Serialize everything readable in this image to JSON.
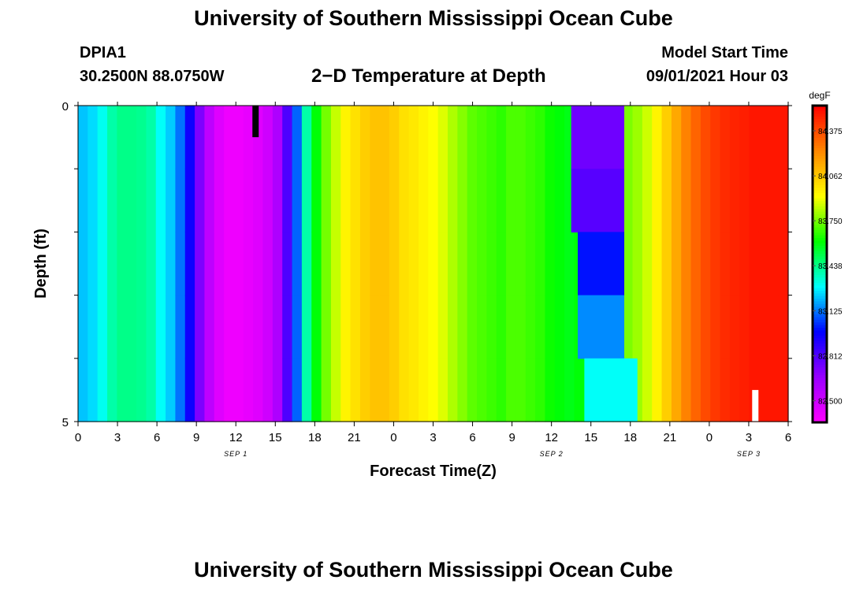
{
  "header": {
    "title": "University of Southern Mississippi Ocean Cube",
    "station": "DPIA1",
    "coords": "30.2500N  88.0750W",
    "plot_title": "2−D Temperature at Depth",
    "start_label": "Model Start Time",
    "start_time": "09/01/2021 Hour 03"
  },
  "footer": {
    "title": "University of Southern Mississippi Ocean Cube"
  },
  "chart_data": {
    "type": "heatmap",
    "title": "2−D Temperature at Depth",
    "xlabel": "Forecast Time(Z)",
    "ylabel": "Depth (ft)",
    "x_range_hours": [
      0,
      54
    ],
    "y_range": [
      0,
      5
    ],
    "x_tick_labels": [
      "0",
      "3",
      "6",
      "9",
      "12",
      "15",
      "18",
      "21",
      "0",
      "3",
      "6",
      "9",
      "12",
      "15",
      "18",
      "21",
      "0",
      "3",
      "6"
    ],
    "y_tick_labels": [
      "0",
      "5"
    ],
    "date_labels": [
      {
        "text": "SEP 1",
        "at_hour": 12
      },
      {
        "text": "SEP 2",
        "at_hour": 36
      },
      {
        "text": "SEP 3",
        "at_hour": 51
      }
    ],
    "colorbar": {
      "unit": "degF",
      "range": [
        82.35,
        84.55
      ],
      "tick_labels": [
        "84.375",
        "84.062",
        "83.750",
        "83.438",
        "83.125",
        "82.812",
        "82.500"
      ],
      "tick_values": [
        84.375,
        84.062,
        83.75,
        83.438,
        83.125,
        82.812,
        82.5
      ],
      "colors": [
        "#ff00ff",
        "#9900ff",
        "#0000ff",
        "#00ffff",
        "#00ff00",
        "#ffff00",
        "#ff8800",
        "#ff0000"
      ]
    },
    "grid": false,
    "time_series_surface_degF": [
      83.22,
      83.25,
      83.31,
      83.4,
      83.44,
      83.44,
      83.43,
      83.4,
      83.3,
      83.23,
      83.12,
      82.95,
      82.72,
      82.55,
      82.45,
      82.4,
      82.4,
      82.42,
      82.45,
      82.5,
      82.6,
      82.82,
      83.1,
      83.4,
      83.6,
      83.75,
      83.85,
      83.95,
      84.0,
      84.05,
      84.08,
      84.08,
      84.05,
      84.0,
      83.98,
      83.95,
      83.92,
      83.88,
      83.82,
      83.77,
      83.72,
      83.7,
      83.68,
      83.66,
      83.7,
      83.7,
      83.68,
      83.66,
      83.62,
      83.6,
      83.58,
      83.6,
      83.62,
      83.65,
      83.68,
      83.72,
      83.76,
      83.8,
      83.86,
      83.95,
      84.05,
      84.15,
      84.25,
      84.32,
      84.38,
      84.42,
      84.45,
      84.47,
      84.48,
      84.5,
      84.5,
      84.5,
      84.5
    ],
    "depth_profile_anomalies": [
      {
        "hour_start": 37.5,
        "hour_end": 41.5,
        "depth_start": 0,
        "depth_end": 1,
        "value_degF": 82.75
      },
      {
        "hour_start": 37.5,
        "hour_end": 41.5,
        "depth_start": 1,
        "depth_end": 2,
        "value_degF": 82.8
      },
      {
        "hour_start": 38.0,
        "hour_end": 41.5,
        "depth_start": 2,
        "depth_end": 3,
        "value_degF": 83.0
      },
      {
        "hour_start": 38.0,
        "hour_end": 41.5,
        "depth_start": 3,
        "depth_end": 4,
        "value_degF": 83.15
      },
      {
        "hour_start": 38.5,
        "hour_end": 42.5,
        "depth_start": 4,
        "depth_end": 5,
        "value_degF": 83.3
      }
    ],
    "markers": [
      {
        "hour": 13.5,
        "depth_start": 0,
        "depth_end": 0.5,
        "color": "#000000"
      },
      {
        "hour": 51.5,
        "depth_start": 4.5,
        "depth_end": 5,
        "color": "#ffffff"
      }
    ]
  }
}
